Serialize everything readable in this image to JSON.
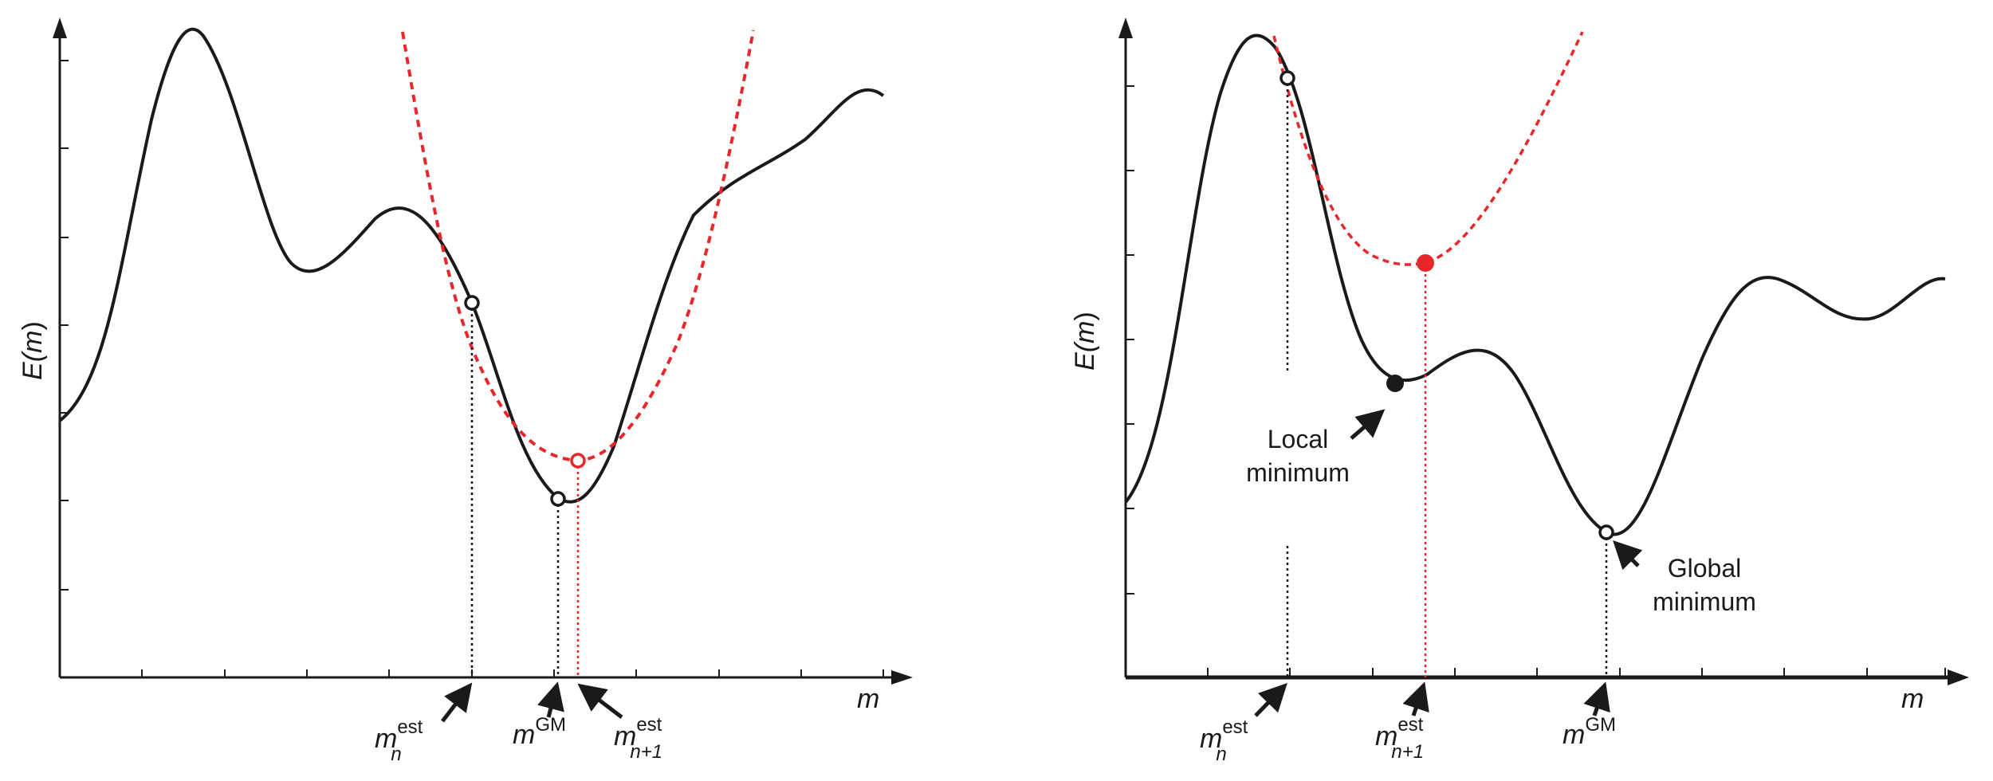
{
  "colors": {
    "curve": "#1a1a1a",
    "accent": "#e8272b",
    "axis": "#1a1a1a"
  },
  "left_panel": {
    "ylabel": {
      "pre": "E(",
      "var": "m",
      "post": ")"
    },
    "xlabel": "m",
    "markers": [
      {
        "base": "m",
        "sub": "n",
        "sup": "est"
      },
      {
        "base": "m",
        "sub": "",
        "sup": "GM"
      },
      {
        "base": "m",
        "sub": "n+1",
        "sup": "est"
      }
    ]
  },
  "right_panel": {
    "ylabel": {
      "pre": "E(",
      "var": "m",
      "post": ")"
    },
    "xlabel": "m",
    "markers": [
      {
        "base": "m",
        "sub": "n",
        "sup": "est"
      },
      {
        "base": "m",
        "sub": "n+1",
        "sup": "est"
      },
      {
        "base": "m",
        "sub": "",
        "sup": "GM"
      }
    ],
    "local_min_label": [
      "Local",
      "minimum"
    ],
    "global_min_label": [
      "Global",
      "minimum"
    ]
  }
}
